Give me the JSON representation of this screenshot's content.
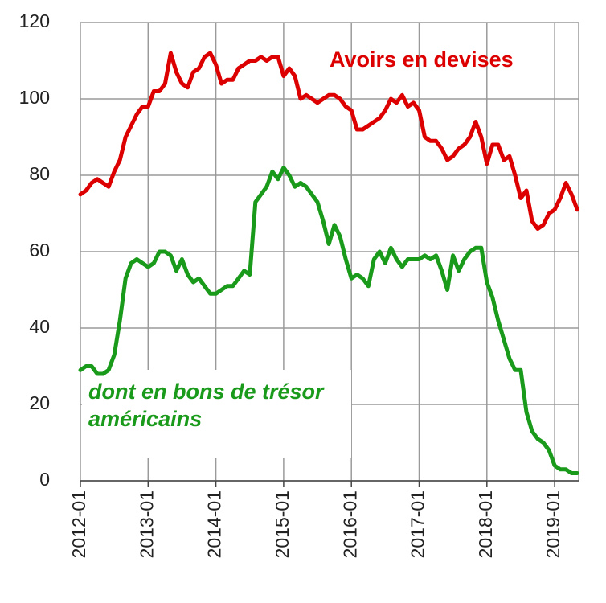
{
  "chart_data": {
    "type": "line",
    "x": [
      "2012-01",
      "2012-02",
      "2012-03",
      "2012-04",
      "2012-05",
      "2012-06",
      "2012-07",
      "2012-08",
      "2012-09",
      "2012-10",
      "2012-11",
      "2012-12",
      "2013-01",
      "2013-02",
      "2013-03",
      "2013-04",
      "2013-05",
      "2013-06",
      "2013-07",
      "2013-08",
      "2013-09",
      "2013-10",
      "2013-11",
      "2013-12",
      "2014-01",
      "2014-02",
      "2014-03",
      "2014-04",
      "2014-05",
      "2014-06",
      "2014-07",
      "2014-08",
      "2014-09",
      "2014-10",
      "2014-11",
      "2014-12",
      "2015-01",
      "2015-02",
      "2015-03",
      "2015-04",
      "2015-05",
      "2015-06",
      "2015-07",
      "2015-08",
      "2015-09",
      "2015-10",
      "2015-11",
      "2015-12",
      "2016-01",
      "2016-02",
      "2016-03",
      "2016-04",
      "2016-05",
      "2016-06",
      "2016-07",
      "2016-08",
      "2016-09",
      "2016-10",
      "2016-11",
      "2016-12",
      "2017-01",
      "2017-02",
      "2017-03",
      "2017-04",
      "2017-05",
      "2017-06",
      "2017-07",
      "2017-08",
      "2017-09",
      "2017-10",
      "2017-11",
      "2017-12",
      "2018-01",
      "2018-02",
      "2018-03",
      "2018-04",
      "2018-05",
      "2018-06",
      "2018-07",
      "2018-08",
      "2018-09",
      "2018-10",
      "2018-11",
      "2018-12",
      "2019-01",
      "2019-02",
      "2019-03",
      "2019-04",
      "2019-05"
    ],
    "series": [
      {
        "name": "Avoirs en devises",
        "color": "#dd0000",
        "values": [
          75,
          76,
          78,
          79,
          78,
          77,
          81,
          84,
          90,
          93,
          96,
          98,
          98,
          102,
          102,
          104,
          112,
          107,
          104,
          103,
          107,
          108,
          111,
          112,
          109,
          104,
          105,
          105,
          108,
          109,
          110,
          110,
          111,
          110,
          111,
          111,
          106,
          108,
          106,
          100,
          101,
          100,
          99,
          100,
          101,
          101,
          100,
          98,
          97,
          92,
          92,
          93,
          94,
          95,
          97,
          100,
          99,
          101,
          98,
          99,
          97,
          90,
          89,
          89,
          87,
          84,
          85,
          87,
          88,
          90,
          94,
          90,
          83,
          88,
          88,
          84,
          85,
          80,
          74,
          76,
          68,
          66,
          67,
          70,
          71,
          74,
          78,
          75,
          71
        ]
      },
      {
        "name": "dont en bons de trésor américains",
        "color": "#1a9a1a",
        "values": [
          29,
          30,
          30,
          28,
          28,
          29,
          33,
          42,
          53,
          57,
          58,
          57,
          56,
          57,
          60,
          60,
          59,
          55,
          58,
          54,
          52,
          53,
          51,
          49,
          49,
          50,
          51,
          51,
          53,
          55,
          54,
          73,
          75,
          77,
          81,
          79,
          82,
          80,
          77,
          78,
          77,
          75,
          73,
          68,
          62,
          67,
          64,
          58,
          53,
          54,
          53,
          51,
          58,
          60,
          57,
          61,
          58,
          56,
          58,
          58,
          58,
          59,
          58,
          59,
          55,
          50,
          59,
          55,
          58,
          60,
          61,
          61,
          52,
          48,
          42,
          37,
          32,
          29,
          29,
          18,
          13,
          11,
          10,
          8,
          4,
          3,
          3,
          2,
          2
        ]
      }
    ],
    "xticks": [
      "2012-01",
      "2013-01",
      "2014-01",
      "2015-01",
      "2016-01",
      "2017-01",
      "2018-01",
      "2019-01"
    ],
    "ylim": [
      0,
      120
    ],
    "yticks": [
      0,
      20,
      40,
      60,
      80,
      100,
      120
    ],
    "grid": true
  }
}
